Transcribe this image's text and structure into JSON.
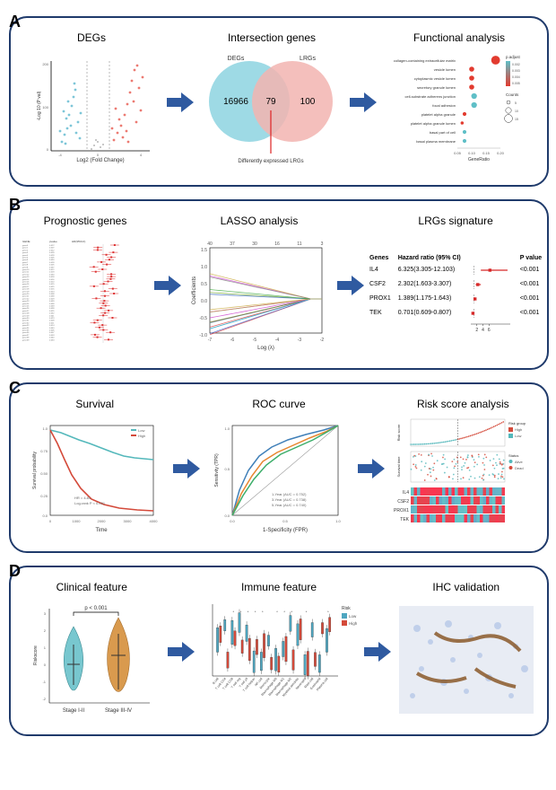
{
  "rows": {
    "A": {
      "label": "A",
      "sub1": {
        "title": "DEGs",
        "ylab": "-Log 10 (P val)",
        "xlab": "Log2 (Fold Change)"
      },
      "sub2": {
        "title": "Intersection genes",
        "left_label": "DEGs",
        "right_label": "LRGs",
        "left_count": "16966",
        "mid_count": "79",
        "right_count": "100",
        "caption": "Differently expressed LRGs",
        "left_color": "#8dd3e0",
        "right_color": "#f2b4b0"
      },
      "sub3": {
        "title": "Functional analysis",
        "terms": [
          "collagen-containing extracellular matrix",
          "vesicle lumen",
          "cytoplasmic vesicle lumen",
          "secretory granule lumen",
          "cell-substrate adherens junction",
          "focal adhesion",
          "platelet alpha granule",
          "platelet alpha granule lumen",
          "basal part of cell",
          "basal plasma membrane"
        ],
        "points": [
          {
            "x": 0.2,
            "size": 14,
            "color": "#e23b2f"
          },
          {
            "x": 0.1,
            "size": 8,
            "color": "#e23b2f"
          },
          {
            "x": 0.1,
            "size": 8,
            "color": "#e23b2f"
          },
          {
            "x": 0.1,
            "size": 8,
            "color": "#e23b2f"
          },
          {
            "x": 0.11,
            "size": 9,
            "color": "#5fbfc7"
          },
          {
            "x": 0.11,
            "size": 9,
            "color": "#5fbfc7"
          },
          {
            "x": 0.07,
            "size": 6,
            "color": "#e23b2f"
          },
          {
            "x": 0.06,
            "size": 5,
            "color": "#e23b2f"
          },
          {
            "x": 0.07,
            "size": 6,
            "color": "#5fbfc7"
          },
          {
            "x": 0.07,
            "size": 6,
            "color": "#5fbfc7"
          }
        ],
        "xlab": "GeneRatio",
        "xticks": [
          "0.05",
          "0.10",
          "0.15",
          "0.20"
        ],
        "legend_padjust": "p.adjust",
        "legend_p_vals": [
          "0.002",
          "0.003",
          "0.004",
          "0.005"
        ],
        "legend_counts": "Counts",
        "legend_c_vals": [
          "5",
          "10",
          "15"
        ]
      }
    },
    "B": {
      "label": "B",
      "sub1": {
        "title": "Prognostic genes"
      },
      "sub2": {
        "title": "LASSO analysis",
        "ylab": "Coefficients",
        "xlab": "Log (λ)",
        "top_ticks": [
          "40",
          "37",
          "30",
          "16",
          "11",
          "3"
        ],
        "yticks": [
          "1.5",
          "1.0",
          "0.5",
          "0.0",
          "-0.5",
          "-1.0"
        ],
        "xticks": [
          "-7",
          "-6",
          "-5",
          "-4",
          "-3",
          "-2"
        ]
      },
      "sub3": {
        "title": "LRGs signature",
        "headers": [
          "Genes",
          "Hazard ratio (95% CI)",
          "",
          "P value"
        ],
        "rows": [
          {
            "gene": "IL4",
            "hr": "6.325(3.305-12.103)",
            "p": "<0.001",
            "x": 6.3,
            "lo": 3.3,
            "hi": 12.1
          },
          {
            "gene": "CSF2",
            "hr": "2.302(1.603-3.307)",
            "p": "<0.001",
            "x": 2.3,
            "lo": 1.6,
            "hi": 3.3
          },
          {
            "gene": "PROX1",
            "hr": "1.389(1.175-1.643)",
            "p": "<0.001",
            "x": 1.39,
            "lo": 1.18,
            "hi": 1.64
          },
          {
            "gene": "TEK",
            "hr": "0.701(0.609-0.807)",
            "p": "<0.001",
            "x": 0.7,
            "lo": 0.61,
            "hi": 0.81
          }
        ],
        "xticks": [
          "2",
          "4",
          "6"
        ],
        "marker_color": "#d62828"
      }
    },
    "C": {
      "label": "C",
      "sub1": {
        "title": "Survival",
        "ylab": "Survival probability",
        "xlab": "Time",
        "xticks": [
          "0",
          "1000",
          "2000",
          "3000",
          "4000"
        ],
        "hr_text": "HR = 4.81",
        "p_text": "Log-rank P < 0.001",
        "legend": [
          {
            "label": "Low",
            "color": "#54b8bb"
          },
          {
            "label": "High",
            "color": "#d44a3a"
          }
        ]
      },
      "sub2": {
        "title": "ROC curve",
        "ylab": "Sensitivity (TPR)",
        "xlab": "1-Specificity (FPR)",
        "legend": [
          "1-Year (AUC = 0.752)",
          "3-Year (AUC = 0.738)",
          "5-Year (AUC = 0.740)"
        ],
        "colors": [
          "#3f7fb8",
          "#e8862f",
          "#3cae6a"
        ]
      },
      "sub3": {
        "title": "Risk score analysis",
        "ylab1": "Risk score",
        "ylab2": "Survival time",
        "status_label": "Status",
        "status_vals": [
          "Alive",
          "Dead"
        ],
        "risk_label": "Risk",
        "risk_vals": [
          "High",
          "Low"
        ],
        "genes": [
          "IL4",
          "CSF2",
          "PROX1",
          "TEK"
        ],
        "high_color": "#d44a3a",
        "low_color": "#54b8bb"
      }
    },
    "D": {
      "label": "D",
      "sub1": {
        "title": "Clinical feature",
        "ylab": "Riskscore",
        "xticks": [
          "Stage I-II",
          "Stage III-IV"
        ],
        "p_text": "p < 0.001",
        "left_color": "#78c7cf",
        "right_color": "#d99a4e",
        "yticks": [
          "-2",
          "-1",
          "0",
          "1",
          "2",
          "3"
        ]
      },
      "sub2": {
        "title": "Immune feature",
        "risk_label": "Risk",
        "risk_vals": [
          "Low",
          "High"
        ],
        "low_color": "#4ea6c0",
        "high_color": "#d44a3a",
        "cells": [
          "B cell",
          "T cell CD4",
          "T cell CD8",
          "T cell reg",
          "T cell γδ",
          "T cell helper",
          "NK cell",
          "Monocyte",
          "Macrophage M0",
          "Macrophage M1",
          "Macrophage M2",
          "Myeloid dendritic",
          "Neutrophil",
          "Mast cell",
          "Eosinophil",
          "Plasma cell"
        ]
      },
      "sub3": {
        "title": "IHC validation"
      }
    }
  },
  "arrow_color": "#2f5aa0"
}
